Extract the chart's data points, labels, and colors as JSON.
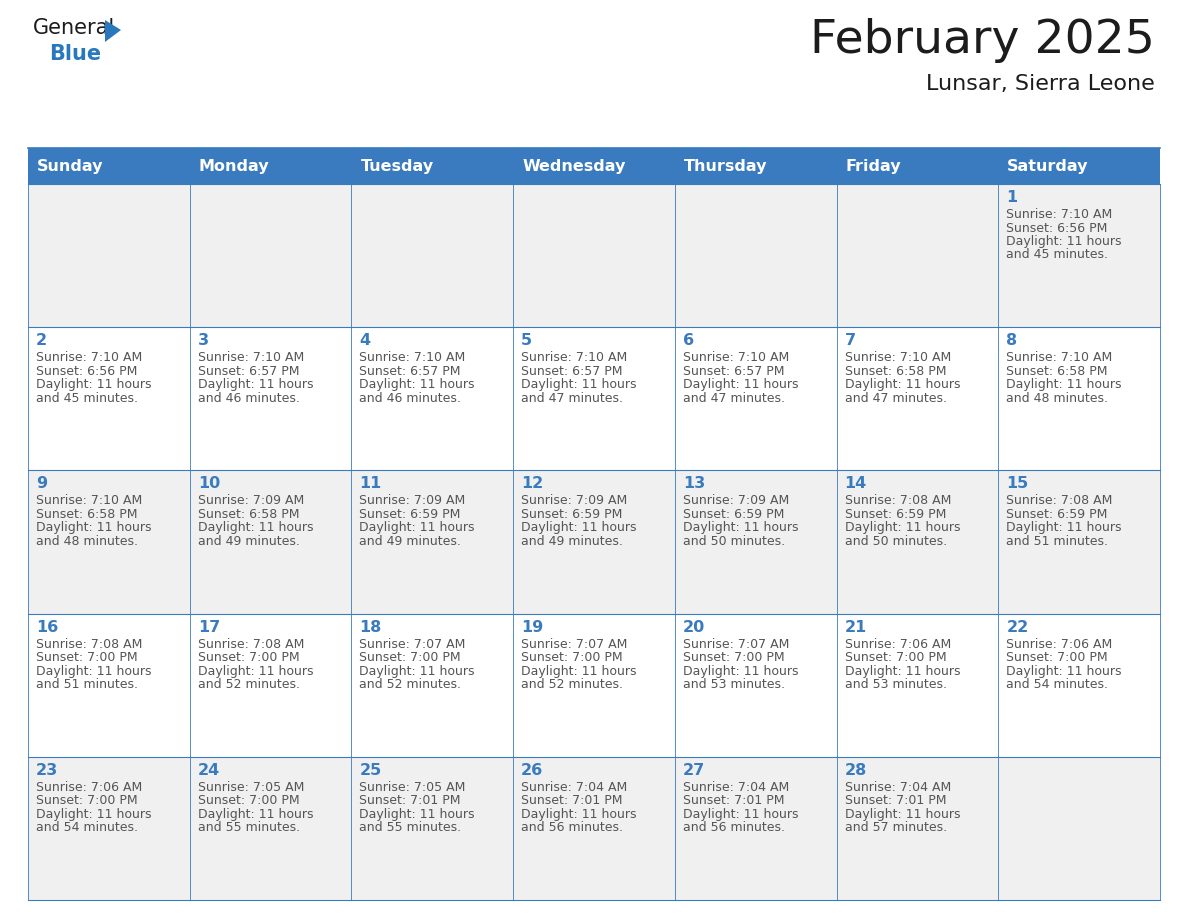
{
  "title": "February 2025",
  "subtitle": "Lunsar, Sierra Leone",
  "header_bg": "#3a7abf",
  "header_text_color": "#ffffff",
  "day_names": [
    "Sunday",
    "Monday",
    "Tuesday",
    "Wednesday",
    "Thursday",
    "Friday",
    "Saturday"
  ],
  "row_bg_even": "#f0f0f0",
  "row_bg_odd": "#ffffff",
  "cell_border_color": "#3a7abf",
  "day_num_color": "#3a7abf",
  "info_text_color": "#555555",
  "days": [
    {
      "day": 1,
      "col": 6,
      "row": 0,
      "sunrise": "7:10 AM",
      "sunset": "6:56 PM",
      "daylight": "11 hours and 45 minutes."
    },
    {
      "day": 2,
      "col": 0,
      "row": 1,
      "sunrise": "7:10 AM",
      "sunset": "6:56 PM",
      "daylight": "11 hours and 45 minutes."
    },
    {
      "day": 3,
      "col": 1,
      "row": 1,
      "sunrise": "7:10 AM",
      "sunset": "6:57 PM",
      "daylight": "11 hours and 46 minutes."
    },
    {
      "day": 4,
      "col": 2,
      "row": 1,
      "sunrise": "7:10 AM",
      "sunset": "6:57 PM",
      "daylight": "11 hours and 46 minutes."
    },
    {
      "day": 5,
      "col": 3,
      "row": 1,
      "sunrise": "7:10 AM",
      "sunset": "6:57 PM",
      "daylight": "11 hours and 47 minutes."
    },
    {
      "day": 6,
      "col": 4,
      "row": 1,
      "sunrise": "7:10 AM",
      "sunset": "6:57 PM",
      "daylight": "11 hours and 47 minutes."
    },
    {
      "day": 7,
      "col": 5,
      "row": 1,
      "sunrise": "7:10 AM",
      "sunset": "6:58 PM",
      "daylight": "11 hours and 47 minutes."
    },
    {
      "day": 8,
      "col": 6,
      "row": 1,
      "sunrise": "7:10 AM",
      "sunset": "6:58 PM",
      "daylight": "11 hours and 48 minutes."
    },
    {
      "day": 9,
      "col": 0,
      "row": 2,
      "sunrise": "7:10 AM",
      "sunset": "6:58 PM",
      "daylight": "11 hours and 48 minutes."
    },
    {
      "day": 10,
      "col": 1,
      "row": 2,
      "sunrise": "7:09 AM",
      "sunset": "6:58 PM",
      "daylight": "11 hours and 49 minutes."
    },
    {
      "day": 11,
      "col": 2,
      "row": 2,
      "sunrise": "7:09 AM",
      "sunset": "6:59 PM",
      "daylight": "11 hours and 49 minutes."
    },
    {
      "day": 12,
      "col": 3,
      "row": 2,
      "sunrise": "7:09 AM",
      "sunset": "6:59 PM",
      "daylight": "11 hours and 49 minutes."
    },
    {
      "day": 13,
      "col": 4,
      "row": 2,
      "sunrise": "7:09 AM",
      "sunset": "6:59 PM",
      "daylight": "11 hours and 50 minutes."
    },
    {
      "day": 14,
      "col": 5,
      "row": 2,
      "sunrise": "7:08 AM",
      "sunset": "6:59 PM",
      "daylight": "11 hours and 50 minutes."
    },
    {
      "day": 15,
      "col": 6,
      "row": 2,
      "sunrise": "7:08 AM",
      "sunset": "6:59 PM",
      "daylight": "11 hours and 51 minutes."
    },
    {
      "day": 16,
      "col": 0,
      "row": 3,
      "sunrise": "7:08 AM",
      "sunset": "7:00 PM",
      "daylight": "11 hours and 51 minutes."
    },
    {
      "day": 17,
      "col": 1,
      "row": 3,
      "sunrise": "7:08 AM",
      "sunset": "7:00 PM",
      "daylight": "11 hours and 52 minutes."
    },
    {
      "day": 18,
      "col": 2,
      "row": 3,
      "sunrise": "7:07 AM",
      "sunset": "7:00 PM",
      "daylight": "11 hours and 52 minutes."
    },
    {
      "day": 19,
      "col": 3,
      "row": 3,
      "sunrise": "7:07 AM",
      "sunset": "7:00 PM",
      "daylight": "11 hours and 52 minutes."
    },
    {
      "day": 20,
      "col": 4,
      "row": 3,
      "sunrise": "7:07 AM",
      "sunset": "7:00 PM",
      "daylight": "11 hours and 53 minutes."
    },
    {
      "day": 21,
      "col": 5,
      "row": 3,
      "sunrise": "7:06 AM",
      "sunset": "7:00 PM",
      "daylight": "11 hours and 53 minutes."
    },
    {
      "day": 22,
      "col": 6,
      "row": 3,
      "sunrise": "7:06 AM",
      "sunset": "7:00 PM",
      "daylight": "11 hours and 54 minutes."
    },
    {
      "day": 23,
      "col": 0,
      "row": 4,
      "sunrise": "7:06 AM",
      "sunset": "7:00 PM",
      "daylight": "11 hours and 54 minutes."
    },
    {
      "day": 24,
      "col": 1,
      "row": 4,
      "sunrise": "7:05 AM",
      "sunset": "7:00 PM",
      "daylight": "11 hours and 55 minutes."
    },
    {
      "day": 25,
      "col": 2,
      "row": 4,
      "sunrise": "7:05 AM",
      "sunset": "7:01 PM",
      "daylight": "11 hours and 55 minutes."
    },
    {
      "day": 26,
      "col": 3,
      "row": 4,
      "sunrise": "7:04 AM",
      "sunset": "7:01 PM",
      "daylight": "11 hours and 56 minutes."
    },
    {
      "day": 27,
      "col": 4,
      "row": 4,
      "sunrise": "7:04 AM",
      "sunset": "7:01 PM",
      "daylight": "11 hours and 56 minutes."
    },
    {
      "day": 28,
      "col": 5,
      "row": 4,
      "sunrise": "7:04 AM",
      "sunset": "7:01 PM",
      "daylight": "11 hours and 57 minutes."
    }
  ],
  "logo_text_general": "General",
  "logo_text_blue": "Blue",
  "logo_triangle_color": "#2878be",
  "figsize": [
    11.88,
    9.18
  ],
  "dpi": 100
}
